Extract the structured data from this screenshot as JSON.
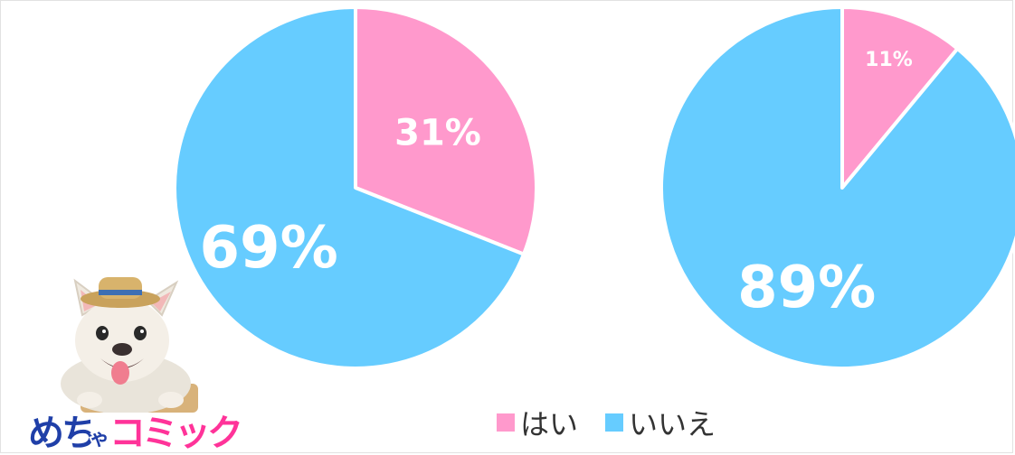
{
  "colors": {
    "yes": "#ff99cc",
    "no": "#66ccff",
    "logo_blue": "#1f3fa8",
    "logo_pink": "#ff3399"
  },
  "chart_data": [
    {
      "type": "pie",
      "slices": [
        {
          "category": "はい",
          "value": 31,
          "label": "31%"
        },
        {
          "category": "いいえ",
          "value": 69,
          "label": "69%"
        }
      ],
      "legend": [
        "はい",
        "いいえ"
      ],
      "legend_position": "bottom"
    },
    {
      "type": "pie",
      "slices": [
        {
          "category": "はい",
          "value": 11,
          "label": "11%"
        },
        {
          "category": "いいえ",
          "value": 89,
          "label": "89%"
        }
      ],
      "legend": [
        "はい",
        "いいえ"
      ],
      "legend_position": "bottom"
    }
  ],
  "legend": {
    "yes": "はい",
    "no": "いいえ"
  },
  "logo": {
    "icon": "dog-mascot-icon",
    "text": "めちゃコミック"
  }
}
